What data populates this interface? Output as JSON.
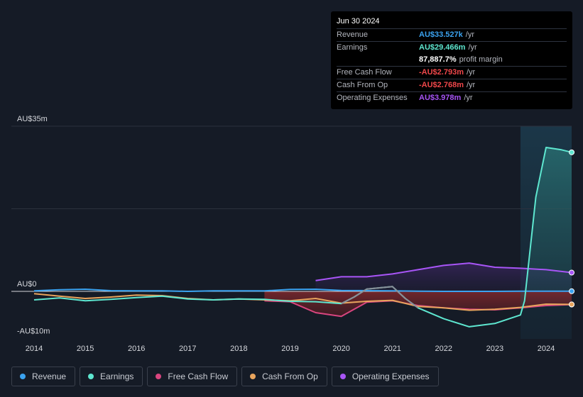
{
  "tooltip": {
    "date": "Jun 30 2024",
    "rows": [
      {
        "label": "Revenue",
        "value": "AU$33.527k",
        "unit": "/yr",
        "color": "#3ba3f0"
      },
      {
        "label": "Earnings",
        "value": "AU$29.466m",
        "unit": "/yr",
        "color": "#5ee7d0"
      },
      {
        "label": "",
        "value": "87,887.7%",
        "unit": "profit margin",
        "color": "#ffffff"
      },
      {
        "label": "Free Cash Flow",
        "value": "-AU$2.793m",
        "unit": "/yr",
        "color": "#f0474a"
      },
      {
        "label": "Cash From Op",
        "value": "-AU$2.768m",
        "unit": "/yr",
        "color": "#f0474a"
      },
      {
        "label": "Operating Expenses",
        "value": "AU$3.978m",
        "unit": "/yr",
        "color": "#a855f7"
      }
    ]
  },
  "chart_data": {
    "type": "line",
    "title": "",
    "y_unit": "AU$m",
    "ylim": [
      -10,
      35
    ],
    "y_tick_labels": [
      {
        "value": 35,
        "label": "AU$35m"
      },
      {
        "value": 0,
        "label": "AU$0"
      },
      {
        "value": -10,
        "label": "-AU$10m"
      }
    ],
    "xlim": [
      2013.9,
      2024.55
    ],
    "x_ticks": [
      2014,
      2015,
      2016,
      2017,
      2018,
      2019,
      2020,
      2021,
      2022,
      2023,
      2024
    ],
    "highlight_start": 2023.5,
    "series": [
      {
        "name": "Revenue",
        "color": "#3ba3f0",
        "points": [
          [
            2014,
            0.1
          ],
          [
            2014.5,
            0.35
          ],
          [
            2015,
            0.45
          ],
          [
            2015.5,
            0.15
          ],
          [
            2016,
            0.1
          ],
          [
            2016.5,
            0.1
          ],
          [
            2017,
            0
          ],
          [
            2017.5,
            0.1
          ],
          [
            2018,
            0.1
          ],
          [
            2018.5,
            0.1
          ],
          [
            2019,
            0.4
          ],
          [
            2019.5,
            0.45
          ],
          [
            2020,
            0.2
          ],
          [
            2020.5,
            0.15
          ],
          [
            2021,
            0.1
          ],
          [
            2021.5,
            0.05
          ],
          [
            2022,
            0
          ],
          [
            2022.5,
            0
          ],
          [
            2023,
            0
          ],
          [
            2023.5,
            0.05
          ],
          [
            2024,
            0.03
          ],
          [
            2024.5,
            0.03
          ]
        ]
      },
      {
        "name": "Earnings",
        "color": "#5ee7d0",
        "area": true,
        "points": [
          [
            2014,
            -1.8
          ],
          [
            2014.5,
            -1.4
          ],
          [
            2015,
            -2.0
          ],
          [
            2015.5,
            -1.7
          ],
          [
            2016,
            -1.3
          ],
          [
            2016.5,
            -1.0
          ],
          [
            2017,
            -1.6
          ],
          [
            2017.5,
            -1.8
          ],
          [
            2018,
            -1.6
          ],
          [
            2018.5,
            -1.7
          ],
          [
            2019,
            -2.1
          ],
          [
            2019.5,
            -2.2
          ],
          [
            2020,
            -2.6
          ],
          [
            2020.25,
            -1.2
          ],
          [
            2020.5,
            0.5
          ],
          [
            2021,
            1.0
          ],
          [
            2021.25,
            -1.5
          ],
          [
            2021.5,
            -3.5
          ],
          [
            2022,
            -5.8
          ],
          [
            2022.5,
            -7.5
          ],
          [
            2023,
            -6.8
          ],
          [
            2023.5,
            -5.0
          ],
          [
            2023.58,
            -2.0
          ],
          [
            2023.8,
            20
          ],
          [
            2024,
            30.5
          ],
          [
            2024.3,
            30.0
          ],
          [
            2024.5,
            29.466
          ]
        ]
      },
      {
        "name": "Free Cash Flow",
        "color": "#d9457f",
        "area": true,
        "points": [
          [
            2018.5,
            -2.0
          ],
          [
            2019,
            -2.2
          ],
          [
            2019.5,
            -4.5
          ],
          [
            2020,
            -5.3
          ],
          [
            2020.5,
            -2.3
          ],
          [
            2021,
            -2.0
          ],
          [
            2021.5,
            -3.0
          ],
          [
            2022,
            -3.5
          ],
          [
            2022.5,
            -3.8
          ],
          [
            2023,
            -3.9
          ],
          [
            2023.5,
            -3.5
          ],
          [
            2024,
            -3.0
          ],
          [
            2024.5,
            -2.793
          ]
        ]
      },
      {
        "name": "Cash From Op",
        "color": "#e8a45d",
        "points": [
          [
            2014,
            -0.5
          ],
          [
            2014.5,
            -1.0
          ],
          [
            2015,
            -1.5
          ],
          [
            2015.5,
            -1.2
          ],
          [
            2016,
            -0.8
          ],
          [
            2016.5,
            -0.9
          ],
          [
            2017,
            -1.5
          ],
          [
            2017.5,
            -1.8
          ],
          [
            2018,
            -1.6
          ],
          [
            2018.5,
            -1.8
          ],
          [
            2019,
            -2.0
          ],
          [
            2019.5,
            -1.5
          ],
          [
            2020,
            -2.5
          ],
          [
            2020.5,
            -2.1
          ],
          [
            2021,
            -1.9
          ],
          [
            2021.5,
            -3.2
          ],
          [
            2022,
            -3.5
          ],
          [
            2022.5,
            -4.0
          ],
          [
            2023,
            -3.8
          ],
          [
            2023.5,
            -3.4
          ],
          [
            2024,
            -2.7
          ],
          [
            2024.5,
            -2.768
          ]
        ]
      },
      {
        "name": "Operating Expenses",
        "color": "#a855f7",
        "area": true,
        "points": [
          [
            2019.5,
            2.3
          ],
          [
            2020,
            3.1
          ],
          [
            2020.5,
            3.1
          ],
          [
            2021,
            3.7
          ],
          [
            2021.5,
            4.6
          ],
          [
            2022,
            5.5
          ],
          [
            2022.5,
            6.0
          ],
          [
            2023,
            5.1
          ],
          [
            2023.5,
            4.9
          ],
          [
            2024,
            4.6
          ],
          [
            2024.5,
            3.978
          ]
        ]
      }
    ]
  },
  "legend": [
    {
      "label": "Revenue",
      "color": "#3ba3f0"
    },
    {
      "label": "Earnings",
      "color": "#5ee7d0"
    },
    {
      "label": "Free Cash Flow",
      "color": "#d9457f"
    },
    {
      "label": "Cash From Op",
      "color": "#e8a45d"
    },
    {
      "label": "Operating Expenses",
      "color": "#a855f7"
    }
  ]
}
